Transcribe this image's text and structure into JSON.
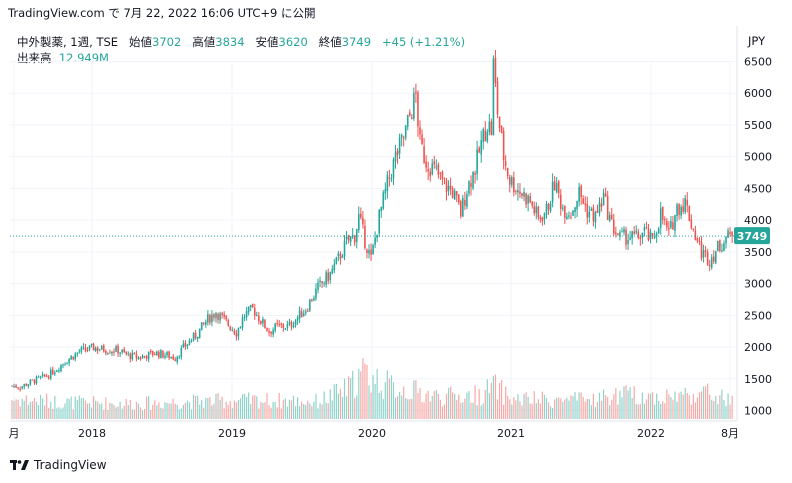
{
  "publish_info": "TradingView.com で 7月 22, 2022 16:06 UTC+9 に公開",
  "brand": "TradingView",
  "currency": "JPY",
  "legend": {
    "symbol": "中外製薬, 1週, TSE",
    "open_label": "始値",
    "open": "3702",
    "high_label": "高値",
    "high": "3834",
    "low_label": "安値",
    "low": "3620",
    "close_label": "終値",
    "close": "3749",
    "change": "+45 (+1.21%)",
    "volume_label": "出来高",
    "volume": "12.949M"
  },
  "colors": {
    "up": "#26a69a",
    "down": "#ef5350",
    "up_volume": "#8fd3cb",
    "down_volume": "#f6a9a7",
    "price_line": "#26a69a"
  },
  "chart_data": {
    "type": "candlestick",
    "interval": "1週",
    "ylim": [
      800,
      6700
    ],
    "yticks": [
      1000,
      1500,
      2000,
      2500,
      3000,
      3500,
      4000,
      4500,
      5000,
      5500,
      6000,
      6500
    ],
    "xticks": [
      "月",
      "2018",
      "2019",
      "2020",
      "2021",
      "2022",
      "8月"
    ],
    "last_price": 3749,
    "price_path": [
      [
        0,
        1390
      ],
      [
        4,
        1370
      ],
      [
        10,
        1460
      ],
      [
        18,
        1560
      ],
      [
        26,
        1770
      ],
      [
        33,
        1930
      ],
      [
        40,
        1990
      ],
      [
        46,
        1960
      ],
      [
        52,
        1950
      ],
      [
        56,
        1880
      ],
      [
        62,
        1830
      ],
      [
        70,
        1910
      ],
      [
        76,
        1870
      ],
      [
        80,
        1830
      ],
      [
        84,
        1990
      ],
      [
        90,
        2180
      ],
      [
        96,
        2440
      ],
      [
        100,
        2550
      ],
      [
        104,
        2420
      ],
      [
        110,
        2230
      ],
      [
        114,
        2500
      ],
      [
        118,
        2600
      ],
      [
        122,
        2420
      ],
      [
        126,
        2250
      ],
      [
        130,
        2320
      ],
      [
        136,
        2330
      ],
      [
        140,
        2470
      ],
      [
        144,
        2600
      ],
      [
        150,
        2930
      ],
      [
        156,
        3150
      ],
      [
        160,
        3390
      ],
      [
        164,
        3650
      ],
      [
        168,
        3760
      ],
      [
        170,
        4050
      ],
      [
        173,
        3680
      ],
      [
        176,
        3380
      ],
      [
        180,
        4050
      ],
      [
        184,
        4560
      ],
      [
        188,
        4990
      ],
      [
        192,
        5300
      ],
      [
        196,
        5750
      ],
      [
        198,
        5960
      ],
      [
        200,
        5190
      ],
      [
        203,
        4930
      ],
      [
        208,
        4750
      ],
      [
        212,
        4560
      ],
      [
        216,
        4450
      ],
      [
        220,
        4110
      ],
      [
        223,
        4500
      ],
      [
        227,
        4820
      ],
      [
        230,
        5200
      ],
      [
        233,
        5530
      ],
      [
        235,
        5420
      ],
      [
        236,
        6450
      ],
      [
        238,
        5720
      ],
      [
        241,
        5000
      ],
      [
        244,
        4640
      ],
      [
        248,
        4490
      ],
      [
        254,
        4290
      ],
      [
        258,
        4020
      ],
      [
        262,
        4150
      ],
      [
        266,
        4580
      ],
      [
        270,
        4200
      ],
      [
        274,
        4120
      ],
      [
        278,
        4430
      ],
      [
        282,
        4150
      ],
      [
        286,
        4050
      ],
      [
        290,
        4360
      ],
      [
        294,
        3920
      ],
      [
        298,
        3720
      ],
      [
        302,
        3740
      ],
      [
        306,
        3720
      ],
      [
        310,
        3820
      ],
      [
        314,
        3650
      ],
      [
        318,
        4100
      ],
      [
        322,
        3760
      ],
      [
        326,
        4200
      ],
      [
        330,
        4280
      ],
      [
        334,
        3850
      ],
      [
        338,
        3490
      ],
      [
        342,
        3380
      ],
      [
        346,
        3560
      ],
      [
        350,
        3720
      ],
      [
        353,
        3749
      ]
    ],
    "volume_path": [
      [
        0,
        0.18
      ],
      [
        30,
        0.15
      ],
      [
        60,
        0.14
      ],
      [
        90,
        0.16
      ],
      [
        120,
        0.17
      ],
      [
        150,
        0.16
      ],
      [
        165,
        0.28
      ],
      [
        172,
        0.42
      ],
      [
        176,
        0.38
      ],
      [
        185,
        0.3
      ],
      [
        195,
        0.26
      ],
      [
        210,
        0.2
      ],
      [
        230,
        0.22
      ],
      [
        236,
        0.3
      ],
      [
        245,
        0.18
      ],
      [
        280,
        0.17
      ],
      [
        300,
        0.22
      ],
      [
        320,
        0.2
      ],
      [
        340,
        0.24
      ],
      [
        353,
        0.16
      ]
    ]
  }
}
